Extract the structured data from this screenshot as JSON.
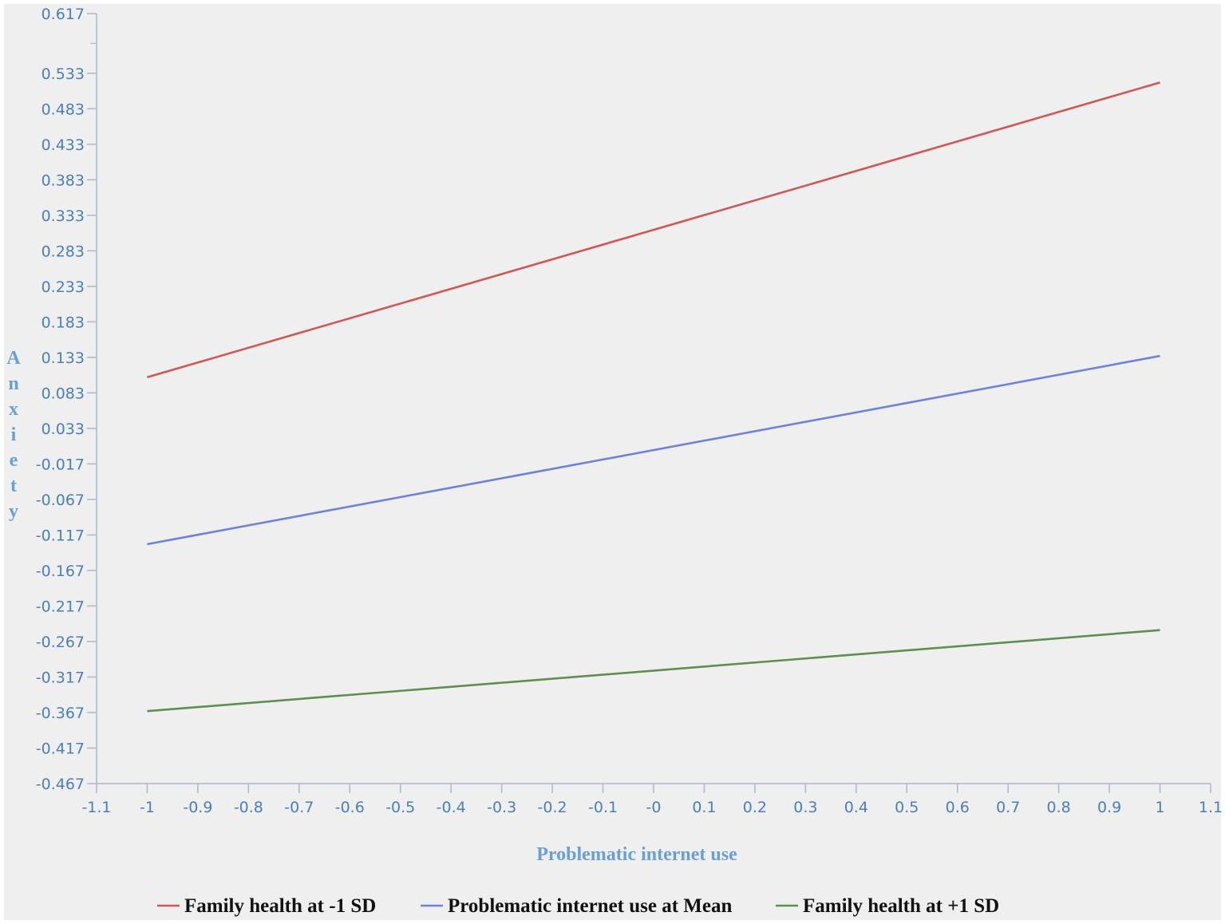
{
  "chart_data": {
    "type": "line",
    "title": "",
    "xlabel": "Problematic internet use",
    "ylabel": "Anxiety",
    "xlim": [
      -1.1,
      1.1
    ],
    "ylim": [
      -0.467,
      0.617
    ],
    "x_ticks": [
      "-1.1",
      "-1",
      "-0.9",
      "-0.8",
      "-0.7",
      "-0.6",
      "-0.5",
      "-0.4",
      "-0.3",
      "-0.2",
      "-0.1",
      "-0",
      "0.1",
      "0.2",
      "0.3",
      "0.4",
      "0.5",
      "0.6",
      "0.7",
      "0.8",
      "0.9",
      "1",
      "1.1"
    ],
    "y_ticks": [
      "0.617",
      "0.533",
      "0.483",
      "0.433",
      "0.383",
      "0.333",
      "0.283",
      "0.233",
      "0.183",
      "0.133",
      "0.083",
      "0.033",
      "-0.017",
      "-0.067",
      "-0.117",
      "-0.167",
      "-0.217",
      "-0.267",
      "-0.317",
      "-0.367",
      "-0.417",
      "-0.467"
    ],
    "grid": false,
    "legend_position": "bottom",
    "series": [
      {
        "name": "Family health at -1 SD",
        "color": "#d05757",
        "x": [
          -1,
          1
        ],
        "y": [
          0.105,
          0.52
        ]
      },
      {
        "name": "Problematic internet use at Mean",
        "color": "#6f82d8",
        "x": [
          -1,
          1
        ],
        "y": [
          -0.13,
          0.135
        ]
      },
      {
        "name": "Family health at +1 SD",
        "color": "#5f8f4f",
        "x": [
          -1,
          1
        ],
        "y": [
          -0.365,
          -0.251
        ]
      }
    ]
  }
}
